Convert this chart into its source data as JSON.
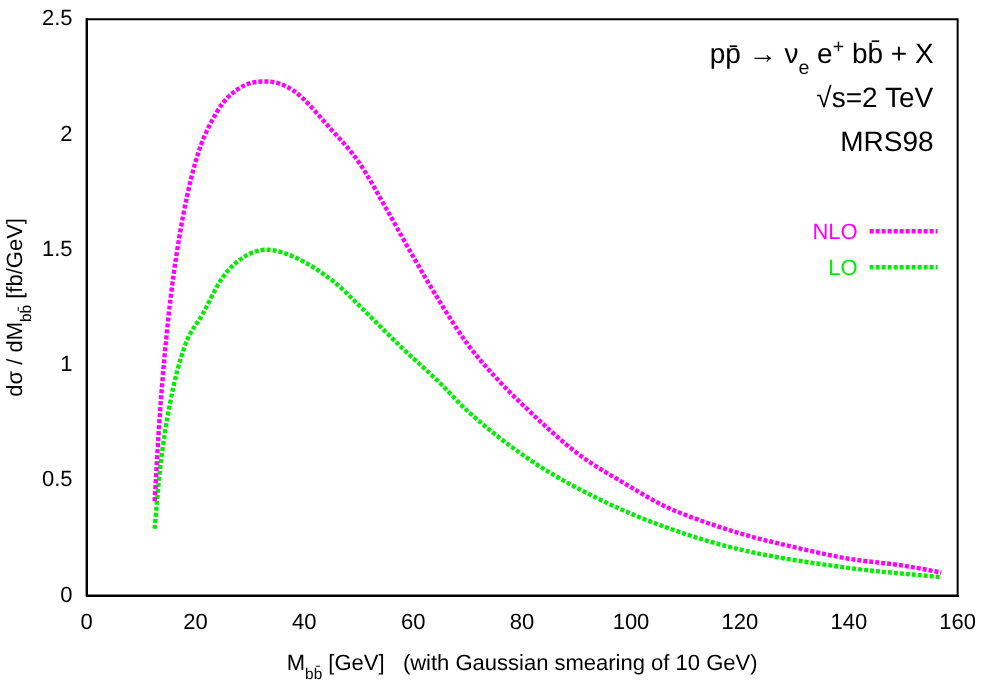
{
  "chart_data": {
    "type": "line",
    "xlabel": "M$_{bb̄}$ [GeV]   (with Gaussian smearing of 10 GeV)",
    "ylabel": "dσ / dM$_{bb̄}$ [fb/GeV]",
    "annotations": [
      "pp̄ → ν$_{e}$ e$^{+}$ bb̄ + X",
      "√s=2 TeV",
      "MRS98"
    ],
    "xlim": [
      0,
      160
    ],
    "xticks": [
      0,
      20,
      40,
      60,
      80,
      100,
      120,
      140,
      160
    ],
    "ylim": [
      0,
      2.5
    ],
    "yticks": [
      0,
      0.5,
      1,
      1.5,
      2,
      2.5
    ],
    "grid": false,
    "legend": "top right",
    "marker": "none",
    "line_style": "dotted",
    "series": [
      {
        "name": "NLO",
        "color": "#ff00ff",
        "x": [
          12.5,
          13.5,
          15,
          17,
          20,
          24,
          28,
          33,
          38,
          45,
          50,
          55,
          60,
          65,
          70,
          75,
          80,
          90,
          100,
          106,
          110,
          120,
          130,
          140,
          150,
          157
        ],
        "values": [
          0.41,
          0.8,
          1.2,
          1.55,
          1.88,
          2.1,
          2.2,
          2.23,
          2.19,
          2.02,
          1.88,
          1.68,
          1.47,
          1.27,
          1.09,
          0.95,
          0.83,
          0.62,
          0.47,
          0.39,
          0.35,
          0.27,
          0.21,
          0.16,
          0.13,
          0.1
        ]
      },
      {
        "name": "LO",
        "color": "#00ee00",
        "x": [
          12.5,
          13.5,
          15.3,
          18,
          21.3,
          25,
          29,
          33,
          38,
          45.5,
          50,
          57.7,
          65,
          70,
          82,
          94,
          106,
          120,
          140,
          157
        ],
        "values": [
          0.29,
          0.55,
          0.83,
          1.08,
          1.22,
          1.38,
          1.47,
          1.5,
          1.47,
          1.36,
          1.26,
          1.08,
          0.92,
          0.8,
          0.58,
          0.42,
          0.3,
          0.2,
          0.12,
          0.08
        ]
      }
    ]
  }
}
